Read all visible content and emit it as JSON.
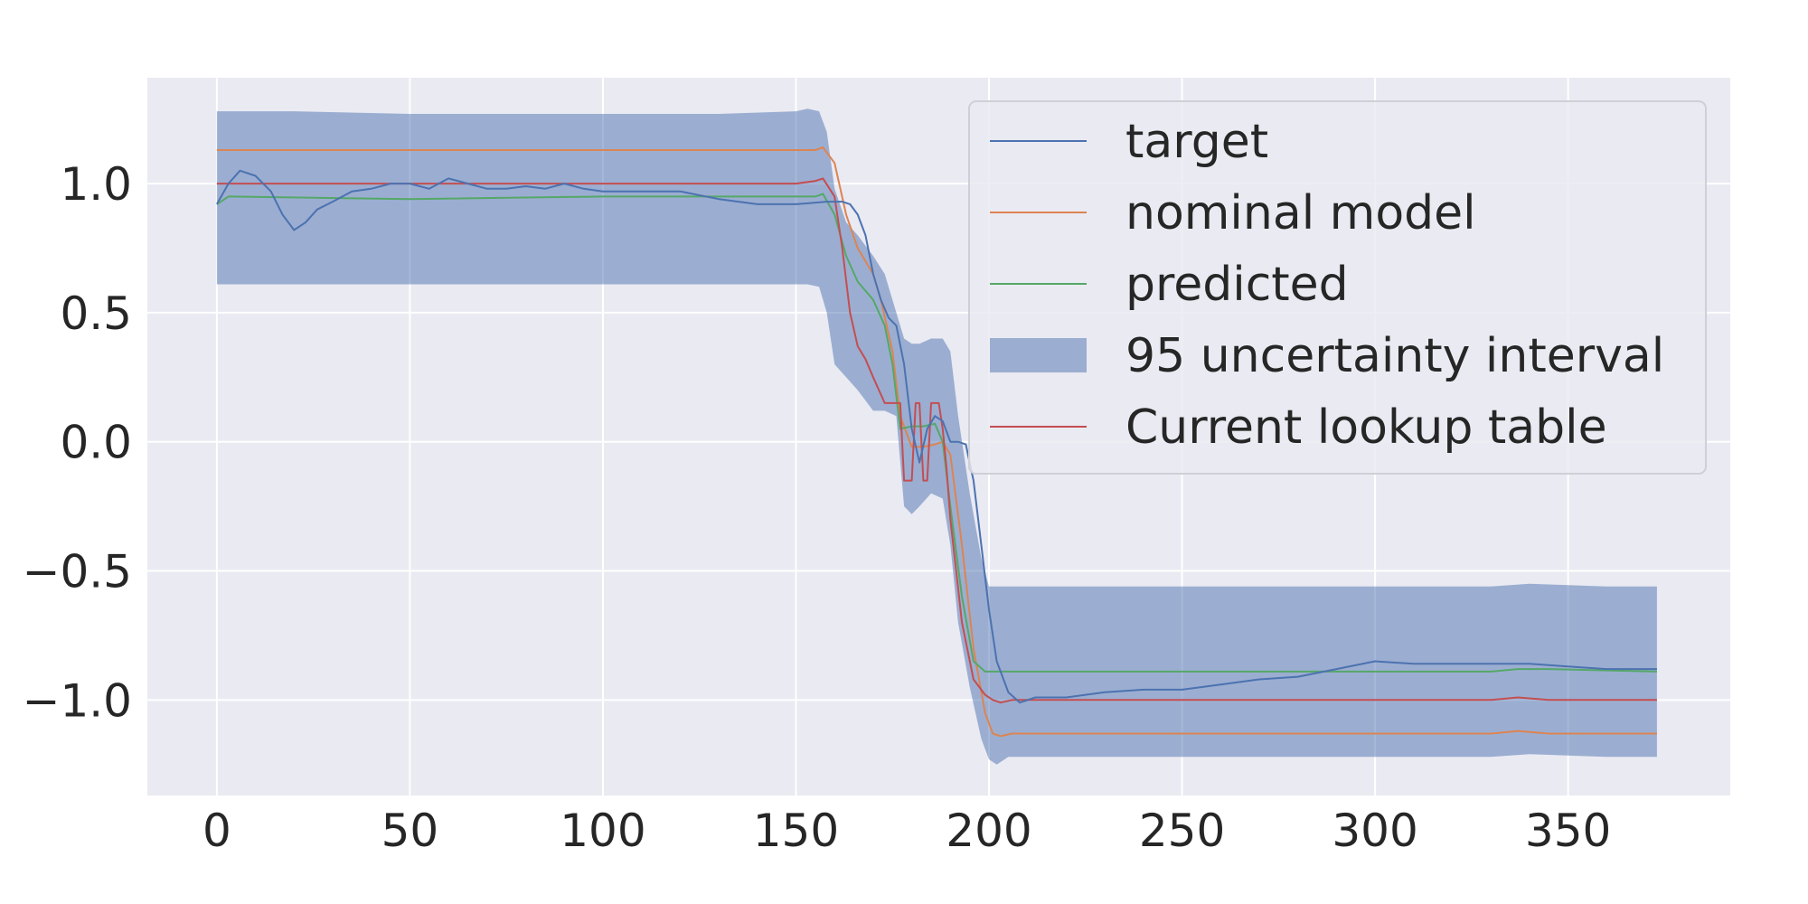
{
  "chart_data": {
    "type": "line",
    "title": "",
    "xlabel": "",
    "ylabel": "",
    "xlim": [
      -18,
      392
    ],
    "ylim": [
      -1.37,
      1.41
    ],
    "xticks": [
      0,
      50,
      100,
      150,
      200,
      250,
      300,
      350
    ],
    "xtick_labels": [
      "0",
      "50",
      "100",
      "150",
      "200",
      "250",
      "300",
      "350"
    ],
    "yticks": [
      1.0,
      0.5,
      0.0,
      -0.5,
      -1.0
    ],
    "ytick_labels": [
      "1.0",
      "0.5",
      "0.0",
      "−0.5",
      "−1.0"
    ],
    "grid": true,
    "legend_position": "top-right",
    "colors": {
      "background": "#eaeaf2",
      "grid": "#ffffff",
      "target": "#4c72b0",
      "nominal": "#dd8452",
      "predicted": "#55a868",
      "band": "#4c72b0",
      "lookup": "#c44e52"
    },
    "legend": [
      {
        "key": "target",
        "label": "target",
        "kind": "line"
      },
      {
        "key": "nominal",
        "label": "nominal model",
        "kind": "line"
      },
      {
        "key": "predicted",
        "label": "predicted",
        "kind": "line"
      },
      {
        "key": "band",
        "label": "95 uncertainty interval",
        "kind": "patch"
      },
      {
        "key": "lookup",
        "label": "Current lookup table",
        "kind": "line"
      }
    ],
    "band": {
      "x": [
        0,
        20,
        50,
        100,
        130,
        150,
        153,
        156,
        158,
        160,
        163,
        166,
        170,
        173,
        176,
        178,
        180,
        182,
        185,
        188,
        190,
        192,
        195,
        198,
        200,
        202,
        205,
        210,
        250,
        300,
        330,
        340,
        360,
        373
      ],
      "upper": [
        1.28,
        1.28,
        1.27,
        1.27,
        1.27,
        1.28,
        1.29,
        1.28,
        1.2,
        0.98,
        0.85,
        0.8,
        0.72,
        0.65,
        0.5,
        0.4,
        0.38,
        0.38,
        0.4,
        0.4,
        0.35,
        0.1,
        -0.2,
        -0.45,
        -0.56,
        -0.56,
        -0.56,
        -0.56,
        -0.56,
        -0.56,
        -0.56,
        -0.55,
        -0.56,
        -0.56
      ],
      "lower": [
        0.61,
        0.61,
        0.61,
        0.61,
        0.61,
        0.61,
        0.61,
        0.6,
        0.5,
        0.3,
        0.25,
        0.2,
        0.12,
        0.12,
        0.1,
        -0.25,
        -0.28,
        -0.25,
        -0.2,
        -0.22,
        -0.4,
        -0.7,
        -0.95,
        -1.15,
        -1.23,
        -1.25,
        -1.22,
        -1.22,
        -1.22,
        -1.22,
        -1.22,
        -1.21,
        -1.22,
        -1.22
      ]
    },
    "series": [
      {
        "key": "nominal",
        "x": [
          0,
          100,
          150,
          155,
          157,
          160,
          163,
          166,
          170,
          172,
          175,
          177,
          180,
          183,
          186,
          188,
          190,
          193,
          196,
          199,
          201,
          203,
          206,
          250,
          300,
          330,
          337,
          345,
          373
        ],
        "y": [
          1.13,
          1.13,
          1.13,
          1.13,
          1.14,
          1.08,
          0.88,
          0.75,
          0.65,
          0.55,
          0.35,
          0.1,
          -0.02,
          -0.02,
          -0.01,
          0.0,
          -0.05,
          -0.4,
          -0.8,
          -1.05,
          -1.13,
          -1.14,
          -1.13,
          -1.13,
          -1.13,
          -1.13,
          -1.12,
          -1.13,
          -1.13
        ]
      },
      {
        "key": "predicted",
        "x": [
          0,
          3,
          50,
          100,
          150,
          155,
          157,
          160,
          163,
          166,
          170,
          173,
          175,
          177,
          180,
          183,
          186,
          188,
          190,
          193,
          196,
          199,
          201,
          205,
          250,
          300,
          330,
          337,
          345,
          373
        ],
        "y": [
          0.92,
          0.95,
          0.94,
          0.95,
          0.95,
          0.95,
          0.96,
          0.88,
          0.72,
          0.62,
          0.55,
          0.45,
          0.3,
          0.05,
          0.06,
          0.06,
          0.07,
          0.0,
          -0.25,
          -0.6,
          -0.85,
          -0.89,
          -0.89,
          -0.89,
          -0.89,
          -0.89,
          -0.89,
          -0.88,
          -0.88,
          -0.89
        ]
      },
      {
        "key": "lookup",
        "x": [
          0,
          50,
          100,
          150,
          155,
          157,
          160,
          162,
          164,
          166,
          168,
          170,
          173,
          176,
          177,
          178,
          180,
          181,
          182,
          183,
          184,
          185,
          186,
          187,
          188,
          189,
          190,
          193,
          196,
          199,
          201,
          203,
          206,
          250,
          300,
          330,
          337,
          345,
          373
        ],
        "y": [
          1.0,
          1.0,
          1.0,
          1.0,
          1.01,
          1.02,
          0.95,
          0.75,
          0.5,
          0.37,
          0.32,
          0.25,
          0.15,
          0.15,
          0.15,
          -0.15,
          -0.15,
          0.15,
          0.15,
          -0.15,
          -0.15,
          0.15,
          0.15,
          0.15,
          0.05,
          -0.1,
          -0.3,
          -0.7,
          -0.92,
          -0.98,
          -1.0,
          -1.01,
          -1.0,
          -1.0,
          -1.0,
          -1.0,
          -0.99,
          -1.0,
          -1.0
        ]
      },
      {
        "key": "target",
        "x": [
          0,
          3,
          6,
          10,
          14,
          17,
          20,
          23,
          26,
          30,
          35,
          40,
          45,
          50,
          55,
          60,
          65,
          70,
          75,
          80,
          85,
          90,
          95,
          100,
          110,
          120,
          130,
          140,
          150,
          158,
          162,
          164,
          166,
          168,
          170,
          172,
          174,
          176,
          178,
          180,
          182,
          184,
          186,
          188,
          190,
          192,
          194,
          196,
          198,
          200,
          202,
          205,
          208,
          212,
          220,
          230,
          240,
          250,
          260,
          270,
          280,
          290,
          300,
          310,
          320,
          330,
          340,
          350,
          360,
          373
        ],
        "y": [
          0.92,
          1.0,
          1.05,
          1.03,
          0.97,
          0.88,
          0.82,
          0.85,
          0.9,
          0.93,
          0.97,
          0.98,
          1.0,
          1.0,
          0.98,
          1.02,
          1.0,
          0.98,
          0.98,
          0.99,
          0.98,
          1.0,
          0.98,
          0.97,
          0.97,
          0.97,
          0.94,
          0.92,
          0.92,
          0.93,
          0.93,
          0.92,
          0.88,
          0.8,
          0.65,
          0.55,
          0.48,
          0.45,
          0.3,
          0.05,
          -0.08,
          0.05,
          0.1,
          0.08,
          0.0,
          0.0,
          -0.01,
          -0.15,
          -0.4,
          -0.65,
          -0.85,
          -0.97,
          -1.01,
          -0.99,
          -0.99,
          -0.97,
          -0.96,
          -0.96,
          -0.94,
          -0.92,
          -0.91,
          -0.88,
          -0.85,
          -0.86,
          -0.86,
          -0.86,
          -0.86,
          -0.87,
          -0.88,
          -0.88
        ]
      }
    ]
  }
}
